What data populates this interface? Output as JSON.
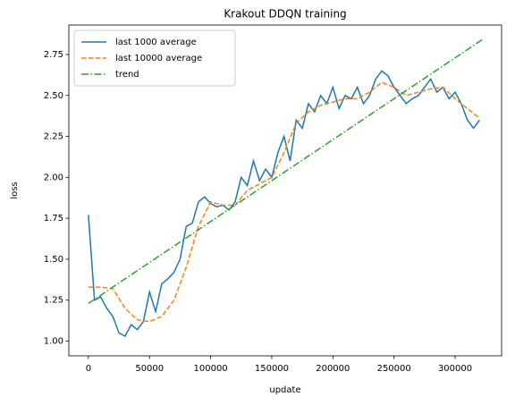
{
  "chart_data": {
    "type": "line",
    "title": "Krakout DDQN training",
    "x_label": "update",
    "y_label": "loss",
    "legend": "upper left",
    "xlim": [
      -16000,
      338000
    ],
    "ylim": [
      0.91,
      2.93
    ],
    "xticks": [
      0,
      50000,
      100000,
      150000,
      200000,
      250000,
      300000
    ],
    "yticks": [
      {
        "value": 1.0,
        "label": "1.00"
      },
      {
        "value": 1.25,
        "label": "1.25"
      },
      {
        "value": 1.5,
        "label": "1.50"
      },
      {
        "value": 1.75,
        "label": "1.75"
      },
      {
        "value": 2.0,
        "label": "2.00"
      },
      {
        "value": 2.25,
        "label": "2.25"
      },
      {
        "value": 2.5,
        "label": "2.50"
      },
      {
        "value": 2.75,
        "label": "2.75"
      }
    ],
    "series": [
      {
        "name": "last 1000 average",
        "color": "#1f77b4",
        "dash": "solid",
        "x": [
          0,
          5000,
          10000,
          15000,
          20000,
          25000,
          30000,
          35000,
          40000,
          45000,
          50000,
          55000,
          60000,
          65000,
          70000,
          75000,
          80000,
          85000,
          90000,
          95000,
          100000,
          105000,
          110000,
          115000,
          120000,
          125000,
          130000,
          135000,
          140000,
          145000,
          150000,
          155000,
          160000,
          165000,
          170000,
          175000,
          180000,
          185000,
          190000,
          195000,
          200000,
          205000,
          210000,
          215000,
          220000,
          225000,
          230000,
          235000,
          240000,
          245000,
          250000,
          255000,
          260000,
          265000,
          270000,
          275000,
          280000,
          285000,
          290000,
          295000,
          300000,
          305000,
          310000,
          315000,
          320000
        ],
        "values": [
          1.77,
          1.25,
          1.27,
          1.2,
          1.15,
          1.05,
          1.03,
          1.1,
          1.07,
          1.12,
          1.3,
          1.18,
          1.35,
          1.38,
          1.42,
          1.5,
          1.7,
          1.72,
          1.85,
          1.88,
          1.84,
          1.82,
          1.83,
          1.8,
          1.85,
          2.0,
          1.95,
          2.1,
          1.98,
          2.05,
          2.0,
          2.15,
          2.25,
          2.1,
          2.35,
          2.3,
          2.45,
          2.4,
          2.5,
          2.45,
          2.55,
          2.42,
          2.5,
          2.48,
          2.55,
          2.45,
          2.5,
          2.6,
          2.65,
          2.62,
          2.55,
          2.5,
          2.45,
          2.48,
          2.5,
          2.55,
          2.6,
          2.52,
          2.55,
          2.48,
          2.52,
          2.45,
          2.35,
          2.3,
          2.35
        ]
      },
      {
        "name": "last 10000 average",
        "color": "#ff7f0e",
        "dash": "dashed",
        "x": [
          0,
          10000,
          20000,
          30000,
          40000,
          50000,
          60000,
          70000,
          80000,
          90000,
          100000,
          110000,
          120000,
          130000,
          140000,
          150000,
          160000,
          170000,
          180000,
          190000,
          200000,
          210000,
          220000,
          230000,
          240000,
          250000,
          260000,
          270000,
          280000,
          290000,
          300000,
          310000,
          320000
        ],
        "values": [
          1.33,
          1.33,
          1.32,
          1.2,
          1.13,
          1.12,
          1.15,
          1.25,
          1.45,
          1.7,
          1.85,
          1.83,
          1.83,
          1.92,
          1.96,
          2.0,
          2.15,
          2.33,
          2.4,
          2.44,
          2.46,
          2.48,
          2.48,
          2.52,
          2.58,
          2.55,
          2.5,
          2.52,
          2.54,
          2.55,
          2.48,
          2.42,
          2.36
        ]
      },
      {
        "name": "trend",
        "color": "#2ca02c",
        "dash": "dashdot",
        "x": [
          0,
          322000
        ],
        "values": [
          1.23,
          2.84
        ]
      }
    ]
  }
}
